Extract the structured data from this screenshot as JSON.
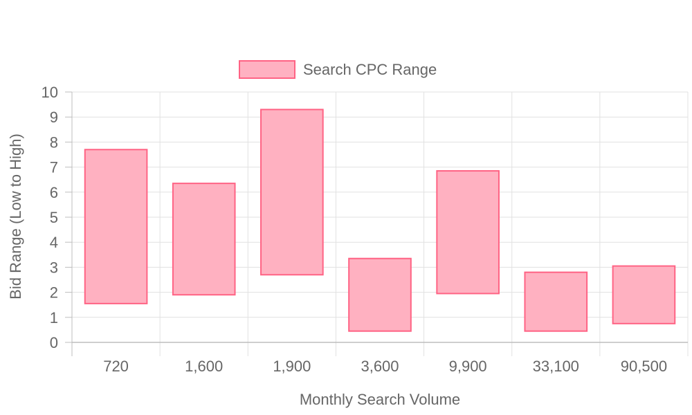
{
  "chart_data": {
    "type": "bar",
    "subtype": "floating-range",
    "xlabel": "Monthly Search Volume",
    "ylabel": "Bid Range (Low to High)",
    "categories": [
      "720",
      "1,600",
      "1,900",
      "3,600",
      "9,900",
      "33,100",
      "90,500"
    ],
    "series": [
      {
        "name": "Search CPC Range",
        "ranges": [
          [
            1.55,
            7.7
          ],
          [
            1.9,
            6.35
          ],
          [
            2.7,
            9.3
          ],
          [
            0.45,
            3.35
          ],
          [
            1.95,
            6.85
          ],
          [
            0.45,
            2.8
          ],
          [
            0.75,
            3.05
          ]
        ],
        "fill": "#ffb1c1",
        "stroke": "#ff6384"
      }
    ],
    "ylim": [
      0,
      10
    ],
    "yticks": [
      0,
      1,
      2,
      3,
      4,
      5,
      6,
      7,
      8,
      9,
      10
    ],
    "grid": true,
    "legend": "top-center"
  }
}
